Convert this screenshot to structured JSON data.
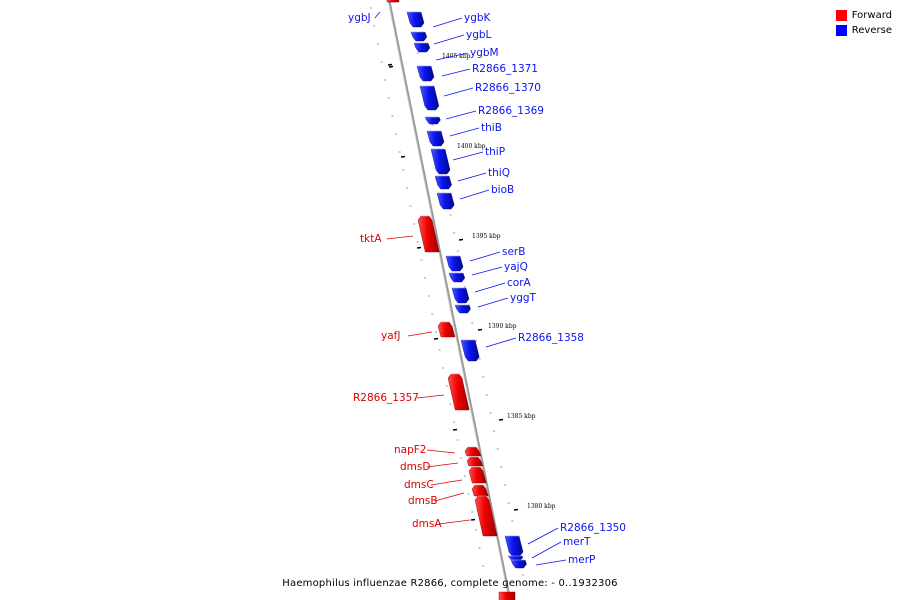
{
  "colors": {
    "forward": "#dd0000",
    "reverse": "#0a14ee",
    "axis": "#999999",
    "leader": "#000000"
  },
  "legend": {
    "forward_label": "Forward",
    "reverse_label": "Reverse"
  },
  "caption": "Haemophilus influenzae R2866, complete genome: - 0..1932306",
  "ticks": [
    {
      "label": "1405 kbp"
    },
    {
      "label": "1400 kbp"
    },
    {
      "label": "1395 kbp"
    },
    {
      "label": "1390 kbp"
    },
    {
      "label": "1385 kbp"
    },
    {
      "label": "1380 kbp"
    }
  ],
  "genes": [
    {
      "name": "ygbJ",
      "strand": "reverse"
    },
    {
      "name": "ygbK",
      "strand": "reverse"
    },
    {
      "name": "ygbL",
      "strand": "reverse"
    },
    {
      "name": "ygbM",
      "strand": "reverse"
    },
    {
      "name": "R2866_1371",
      "strand": "reverse"
    },
    {
      "name": "R2866_1370",
      "strand": "reverse"
    },
    {
      "name": "R2866_1369",
      "strand": "reverse"
    },
    {
      "name": "thiB",
      "strand": "reverse"
    },
    {
      "name": "thiP",
      "strand": "reverse"
    },
    {
      "name": "thiQ",
      "strand": "reverse"
    },
    {
      "name": "bioB",
      "strand": "reverse"
    },
    {
      "name": "tktA",
      "strand": "forward"
    },
    {
      "name": "serB",
      "strand": "reverse"
    },
    {
      "name": "yajQ",
      "strand": "reverse"
    },
    {
      "name": "corA",
      "strand": "reverse"
    },
    {
      "name": "yggT",
      "strand": "reverse"
    },
    {
      "name": "yafJ",
      "strand": "forward"
    },
    {
      "name": "R2866_1358",
      "strand": "reverse"
    },
    {
      "name": "R2866_1357",
      "strand": "forward"
    },
    {
      "name": "napF2",
      "strand": "forward"
    },
    {
      "name": "dmsD",
      "strand": "forward"
    },
    {
      "name": "dmsC",
      "strand": "forward"
    },
    {
      "name": "dmsB",
      "strand": "forward"
    },
    {
      "name": "dmsA",
      "strand": "forward"
    },
    {
      "name": "R2866_1350",
      "strand": "reverse"
    },
    {
      "name": "merT",
      "strand": "reverse"
    },
    {
      "name": "merP",
      "strand": "reverse"
    }
  ]
}
